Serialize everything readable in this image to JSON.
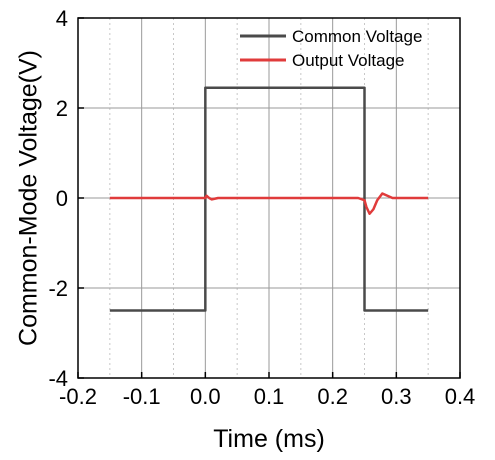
{
  "chart_data": {
    "type": "line",
    "title": "",
    "xlabel": "Time (ms)",
    "ylabel": "Common-Mode Voltage(V)",
    "xlim": [
      -0.2,
      0.4
    ],
    "ylim": [
      -4,
      4
    ],
    "xticks": [
      "-0.2",
      "-0.1",
      "0.0",
      "0.1",
      "0.2",
      "0.3",
      "0.4"
    ],
    "yticks": [
      "-4",
      "-2",
      "0",
      "2",
      "4"
    ],
    "grid": true,
    "legend_position": "top-right",
    "series": [
      {
        "name": "Common Voltage",
        "color": "#4a4a4a",
        "x": [
          -0.15,
          0.0,
          0.0,
          0.25,
          0.25,
          0.35
        ],
        "y": [
          -2.5,
          -2.5,
          2.45,
          2.45,
          -2.5,
          -2.5
        ]
      },
      {
        "name": "Output Voltage",
        "color": "#e03b3b",
        "x": [
          -0.15,
          -0.02,
          0.0,
          0.002,
          0.006,
          0.01,
          0.02,
          0.24,
          0.25,
          0.253,
          0.258,
          0.264,
          0.27,
          0.278,
          0.286,
          0.294,
          0.3,
          0.35
        ],
        "y": [
          0.0,
          0.0,
          0.0,
          0.05,
          0.0,
          -0.03,
          0.0,
          0.0,
          -0.05,
          -0.2,
          -0.35,
          -0.25,
          -0.05,
          0.1,
          0.05,
          0.0,
          0.0,
          0.0
        ]
      }
    ]
  }
}
